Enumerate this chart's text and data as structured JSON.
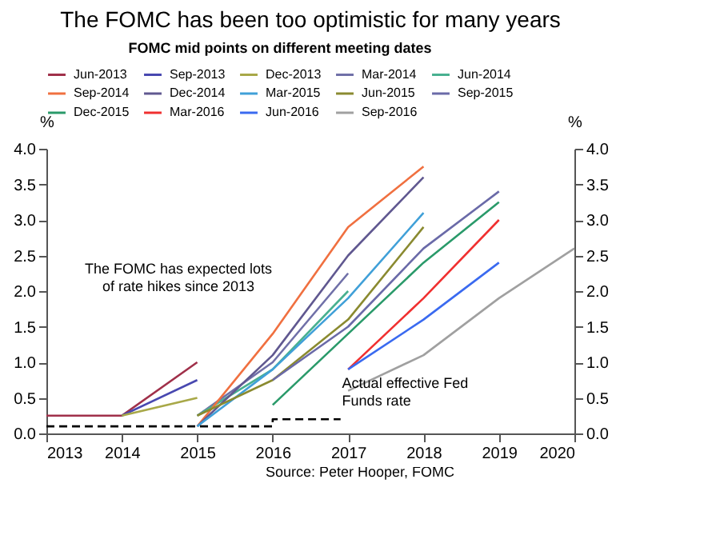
{
  "chart_data": {
    "type": "line",
    "title": "The FOMC has been too optimistic for many years",
    "legend_title": "FOMC mid points on different meeting dates",
    "legend": "top",
    "ylabel": "%",
    "y2label": "%",
    "xlim": [
      2013,
      2020
    ],
    "xticks": [
      2013,
      2014,
      2015,
      2016,
      2017,
      2018,
      2019,
      2020
    ],
    "ylim": [
      0,
      4
    ],
    "yticks": [
      {
        "value": 0,
        "label": "0.0"
      },
      0.5,
      {
        "value": 1,
        "label": "1.0"
      },
      1.5,
      {
        "value": 2,
        "label": "2.0"
      },
      2.5,
      {
        "value": 3,
        "label": "3.0"
      },
      3.5,
      {
        "value": 4,
        "label": "4.0"
      }
    ],
    "y2lim": [
      0,
      4
    ],
    "y2ticks": [
      {
        "value": 0,
        "label": "0.0"
      },
      0.5,
      {
        "value": 1,
        "label": "1.0"
      },
      1.5,
      {
        "value": 2,
        "label": "2.0"
      },
      2.5,
      {
        "value": 3,
        "label": "3.0"
      },
      3.5,
      {
        "value": 4,
        "label": "4.0"
      }
    ],
    "grid": false,
    "annotations": [
      "The FOMC has expected lots of rate hikes since 2013",
      "Actual effective Fed Funds rate",
      "Source: Peter Hooper, FOMC"
    ],
    "series": [
      {
        "name": "Jun-2013",
        "color": "#a0304a",
        "x": [
          2013,
          2014,
          2015
        ],
        "values": [
          0.25,
          0.25,
          1.0
        ]
      },
      {
        "name": "Sep-2013",
        "color": "#4848b0",
        "x": [
          2014,
          2015
        ],
        "values": [
          0.25,
          0.75
        ]
      },
      {
        "name": "Dec-2013",
        "color": "#a8a848",
        "x": [
          2014,
          2015
        ],
        "values": [
          0.25,
          0.5
        ]
      },
      {
        "name": "Mar-2014",
        "color": "#7070a8",
        "x": [
          2015,
          2016,
          2017
        ],
        "values": [
          0.25,
          1.0,
          2.25
        ]
      },
      {
        "name": "Jun-2014",
        "color": "#48b090",
        "x": [
          2015,
          2016,
          2017
        ],
        "values": [
          0.25,
          0.9,
          2.0
        ]
      },
      {
        "name": "Sep-2014",
        "color": "#f07040",
        "x": [
          2015,
          2016,
          2017,
          2018
        ],
        "values": [
          0.1,
          1.4,
          2.9,
          3.75
        ]
      },
      {
        "name": "Dec-2014",
        "color": "#605890",
        "x": [
          2015,
          2016,
          2017,
          2018
        ],
        "values": [
          0.1,
          1.1,
          2.5,
          3.6
        ]
      },
      {
        "name": "Mar-2015",
        "color": "#40a0d8",
        "x": [
          2015,
          2016,
          2017,
          2018
        ],
        "values": [
          0.1,
          0.9,
          1.9,
          3.1
        ]
      },
      {
        "name": "Jun-2015",
        "color": "#8a8a30",
        "x": [
          2015,
          2016,
          2017,
          2018
        ],
        "values": [
          0.25,
          0.75,
          1.6,
          2.9
        ]
      },
      {
        "name": "Sep-2015",
        "color": "#6a6aa8",
        "x": [
          2016,
          2017,
          2018,
          2019
        ],
        "values": [
          0.75,
          1.5,
          2.6,
          3.4
        ]
      },
      {
        "name": "Dec-2015",
        "color": "#2a9a6a",
        "x": [
          2016,
          2017,
          2018,
          2019
        ],
        "values": [
          0.4,
          1.4,
          2.4,
          3.25
        ]
      },
      {
        "name": "Mar-2016",
        "color": "#f03030",
        "x": [
          2017,
          2018,
          2019
        ],
        "values": [
          0.9,
          1.9,
          3.0
        ]
      },
      {
        "name": "Jun-2016",
        "color": "#3a6af0",
        "x": [
          2017,
          2018,
          2019
        ],
        "values": [
          0.9,
          1.6,
          2.4
        ]
      },
      {
        "name": "Sep-2016",
        "color": "#a0a0a0",
        "x": [
          2017,
          2018,
          2019,
          2020
        ],
        "values": [
          0.6,
          1.1,
          1.9,
          2.6
        ]
      },
      {
        "type": "step",
        "color": "#000000",
        "line_style": "dashed",
        "x": [
          2013,
          2016,
          2016.9
        ],
        "values": [
          0.1,
          0.2,
          0.2
        ]
      }
    ]
  }
}
